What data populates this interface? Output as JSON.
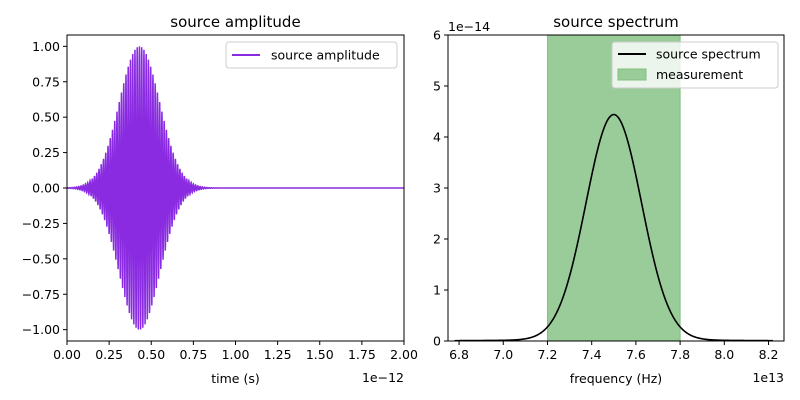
{
  "chart_data": [
    {
      "type": "line",
      "title": "source amplitude",
      "xlabel": "time (s)",
      "ylabel": "",
      "x_offset_label": "1e−12",
      "xlim": [
        0,
        2.0
      ],
      "ylim": [
        -1.08,
        1.08
      ],
      "xticks": [
        "0.00",
        "0.25",
        "0.50",
        "0.75",
        "1.00",
        "1.25",
        "1.50",
        "1.75",
        "2.00"
      ],
      "yticks": [
        "−1.00",
        "−0.75",
        "−0.50",
        "−0.25",
        "0.00",
        "0.25",
        "0.50",
        "0.75",
        "1.00"
      ],
      "ytick_values": [
        -1.0,
        -0.75,
        -0.5,
        -0.25,
        0.0,
        0.25,
        0.5,
        0.75,
        1.0
      ],
      "legend_placement": "top-right",
      "grid": false,
      "series": [
        {
          "name": "source amplitude",
          "color": "#8a2be2",
          "kind": "gaussian-modulated oscillation",
          "envelope_peak": 1.0,
          "envelope_center": 0.43,
          "envelope_sigma": 0.12,
          "carrier_frequency_per_unit": 75
        }
      ]
    },
    {
      "type": "line",
      "title": "source spectrum",
      "xlabel": "frequency (Hz)",
      "ylabel": "",
      "x_offset_label": "1e13",
      "y_offset_label": "1e−14",
      "xlim": [
        6.75,
        8.27
      ],
      "ylim": [
        0,
        6
      ],
      "xticks": [
        "6.8",
        "7.0",
        "7.2",
        "7.4",
        "7.6",
        "7.8",
        "8.0",
        "8.2"
      ],
      "xtick_values": [
        6.8,
        7.0,
        7.2,
        7.4,
        7.6,
        7.8,
        8.0,
        8.2
      ],
      "yticks": [
        "0",
        "1",
        "2",
        "3",
        "4",
        "5",
        "6"
      ],
      "ytick_values": [
        0,
        1,
        2,
        3,
        4,
        5,
        6
      ],
      "legend_placement": "top-right",
      "grid": false,
      "series": [
        {
          "name": "source spectrum",
          "color": "#000000",
          "kind": "gaussian",
          "x_range": [
            6.78,
            8.22
          ],
          "peak": 4.42,
          "center": 7.5,
          "sigma": 0.126
        }
      ],
      "spans": [
        {
          "name": "measurement",
          "x_range": [
            7.2,
            7.8
          ],
          "color": "#99cc99"
        }
      ]
    }
  ]
}
